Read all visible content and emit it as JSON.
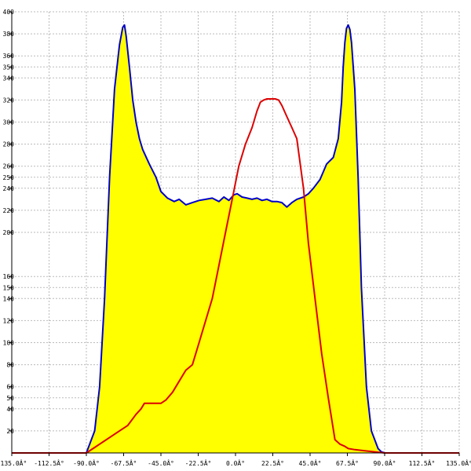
{
  "chart_data": {
    "type": "area",
    "title": "",
    "xlabel": "",
    "ylabel": "",
    "xlim": [
      -135,
      135
    ],
    "ylim": [
      0,
      400
    ],
    "grid": true,
    "legend": "none",
    "x_ticks": [
      -135,
      -112.5,
      -90,
      -67.5,
      -45,
      -22.5,
      0,
      22.5,
      45,
      67.5,
      90,
      112.5,
      135
    ],
    "x_tick_labels": [
      "-135.0Â°",
      "-112.5Â°",
      "-90.0Â°",
      "-67.5Â°",
      "-45.0Â°",
      "-22.5Â°",
      "0.0Â°",
      "22.5Â°",
      "45.0Â°",
      "67.5Â°",
      "90.0Â°",
      "112.5Â°",
      "135.0Â°"
    ],
    "y_ticks": [
      20,
      40,
      50,
      60,
      80,
      100,
      120,
      140,
      150,
      160,
      200,
      220,
      240,
      250,
      260,
      280,
      300,
      320,
      340,
      350,
      360,
      380,
      400
    ],
    "y_tick_labels": [
      "20",
      "40",
      "50",
      "60",
      "80",
      "100",
      "120",
      "140",
      "150",
      "160",
      "200",
      "220",
      "240",
      "250",
      "260",
      "280",
      "300",
      "320",
      "340",
      "350",
      "360",
      "380",
      "400"
    ],
    "series": [
      {
        "style": "filled-area",
        "fill": "#ffff00",
        "stroke": "#0000cc",
        "x": [
          -90,
          -85,
          -82,
          -79,
          -76,
          -73,
          -70,
          -68,
          -67,
          -66,
          -64,
          -62,
          -60,
          -58,
          -56,
          -52,
          -48,
          -45,
          -41,
          -37,
          -34,
          -30,
          -26,
          -22,
          -18,
          -14,
          -10,
          -7,
          -4,
          -1,
          1,
          4,
          7,
          10,
          13,
          16,
          19,
          22,
          25,
          28,
          31,
          34,
          37,
          41,
          44,
          47,
          51,
          55,
          59,
          62,
          64,
          65,
          66,
          67,
          68,
          69,
          70,
          72,
          74,
          76,
          79,
          82,
          86,
          88,
          90
        ],
        "y": [
          0,
          20,
          60,
          140,
          250,
          330,
          370,
          386,
          388,
          378,
          350,
          320,
          300,
          285,
          275,
          262,
          250,
          237,
          231,
          228,
          230,
          225,
          227,
          229,
          230,
          231,
          228,
          232,
          229,
          234,
          235,
          232,
          231,
          230,
          231,
          229,
          230,
          228,
          228,
          227,
          223,
          227,
          230,
          232,
          235,
          240,
          248,
          262,
          268,
          285,
          318,
          350,
          372,
          385,
          388,
          384,
          372,
          330,
          250,
          150,
          60,
          20,
          4,
          1,
          0
        ]
      },
      {
        "style": "line",
        "stroke": "#dd0000",
        "x": [
          -135,
          -90,
          -85,
          -80,
          -75,
          -70,
          -65,
          -60,
          -57,
          -55,
          -52,
          -48,
          -45,
          -42,
          -38,
          -34,
          -30,
          -26,
          -22,
          -18,
          -14,
          -10,
          -6,
          -2,
          2,
          6,
          10,
          13,
          15,
          17,
          19,
          21,
          24,
          26,
          28,
          31,
          34,
          37,
          41,
          44,
          48,
          52,
          56,
          60,
          63,
          66,
          68,
          72,
          78,
          84,
          90,
          135
        ],
        "y": [
          0,
          0,
          5,
          10,
          15,
          20,
          25,
          35,
          40,
          45,
          45,
          45,
          45,
          48,
          55,
          65,
          75,
          80,
          100,
          120,
          140,
          170,
          200,
          230,
          260,
          280,
          295,
          310,
          318,
          320,
          321,
          321,
          321,
          320,
          315,
          305,
          295,
          285,
          240,
          190,
          140,
          90,
          50,
          12,
          8,
          6,
          4,
          3,
          2,
          1,
          0,
          0
        ]
      }
    ]
  }
}
